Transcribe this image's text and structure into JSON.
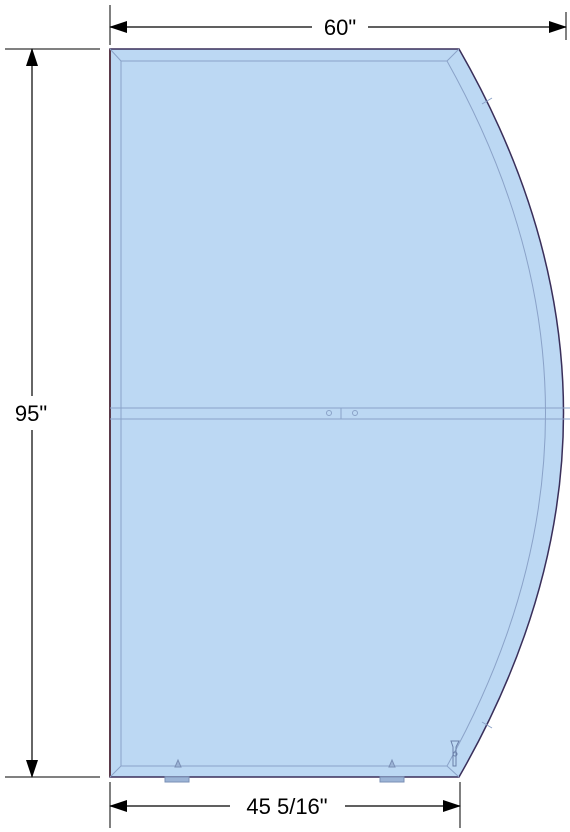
{
  "dimensions": {
    "top_width": "60\"",
    "height": "95\"",
    "bottom_width": "45 5/16\""
  },
  "colors": {
    "panel_fill": "#bcd8f3",
    "panel_inner_line": "#8aa2c8",
    "panel_edge": "#3a2f5a",
    "dimension_line": "#000000",
    "background": "#ffffff"
  }
}
